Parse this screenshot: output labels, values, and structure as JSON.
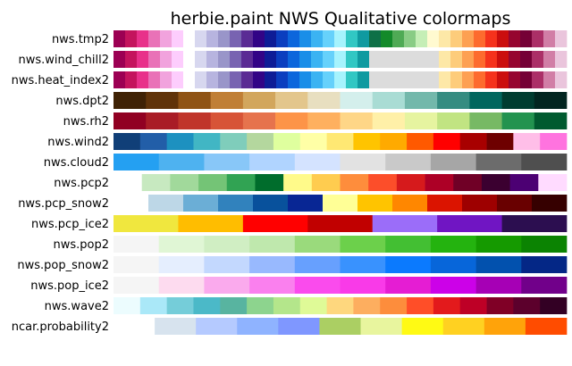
{
  "chart_data": {
    "type": "heatmap",
    "title": "herbie.paint NWS Qualitative colormaps",
    "xlabel": "",
    "ylabel": "",
    "grid": false,
    "legend": "none",
    "rows": [
      {
        "name": "nws.tmp2",
        "colors": [
          "#9c0053",
          "#c4145d",
          "#e8318a",
          "#e972b7",
          "#f1a3dd",
          "#fdcdfd",
          null,
          "#d7d7ef",
          "#b7b4df",
          "#9995c9",
          "#7863b1",
          "#5a2b94",
          "#320486",
          "#0e1c96",
          "#0b3ebf",
          "#0c66dc",
          "#1a8ee8",
          "#3bb3f2",
          "#66d1fb",
          "#a6f3fd",
          "#31c7c3",
          "#0f9aa0",
          "#0e7047",
          "#138a2a",
          "#4faa55",
          "#89cc85",
          "#c5eeb6",
          "#fffad0",
          "#fde8a7",
          "#fdcc7b",
          "#fda052",
          "#fd6b2e",
          "#f5321c",
          "#cb0e0e",
          "#96052f",
          "#750036",
          "#ab2f67",
          "#d17ea6",
          "#eac5dc"
        ]
      },
      {
        "name": "nws.wind_chill2",
        "colors": [
          "#9c0053",
          "#c4145d",
          "#e8318a",
          "#e972b7",
          "#f1a3dd",
          "#fdcdfd",
          null,
          "#d7d7ef",
          "#b7b4df",
          "#9995c9",
          "#7863b1",
          "#5a2b94",
          "#320486",
          "#0e1c96",
          "#0b3ebf",
          "#0c66dc",
          "#1a8ee8",
          "#3bb3f2",
          "#66d1fb",
          "#a6f3fd",
          "#31c7c3",
          "#0f9aa0",
          "#dcdcdc",
          "#dcdcdc",
          "#dcdcdc",
          "#dcdcdc",
          "#dcdcdc",
          "#dcdcdc",
          "#fde8a7",
          "#fdcc7b",
          "#fda052",
          "#fd6b2e",
          "#f5321c",
          "#cb0e0e",
          "#96052f",
          "#750036",
          "#ab2f67",
          "#d17ea6",
          "#eac5dc"
        ]
      },
      {
        "name": "nws.heat_index2",
        "colors": [
          "#9c0053",
          "#c4145d",
          "#e8318a",
          "#e972b7",
          "#f1a3dd",
          "#fdcdfd",
          null,
          "#d7d7ef",
          "#b7b4df",
          "#9995c9",
          "#7863b1",
          "#5a2b94",
          "#320486",
          "#0e1c96",
          "#0b3ebf",
          "#0c66dc",
          "#1a8ee8",
          "#3bb3f2",
          "#66d1fb",
          "#a6f3fd",
          "#31c7c3",
          "#0f9aa0",
          "#dcdcdc",
          "#dcdcdc",
          "#dcdcdc",
          "#dcdcdc",
          "#dcdcdc",
          "#dcdcdc",
          "#fde8a7",
          "#fdcc7b",
          "#fda052",
          "#fd6b2e",
          "#f5321c",
          "#cb0e0e",
          "#96052f",
          "#750036",
          "#ab2f67",
          "#d17ea6",
          "#eac5dc"
        ]
      },
      {
        "name": "nws.dpt2",
        "colors": [
          "#3f2205",
          "#603309",
          "#8f5314",
          "#c07f36",
          "#d2a65d",
          "#e3c68c",
          "#e8dfc0",
          "#d4efec",
          "#a9dcd4",
          "#73b8ab",
          "#358c81",
          "#01665e",
          "#003c30",
          "#022520"
        ]
      },
      {
        "name": "nws.rh2",
        "colors": [
          "#910022",
          "#a91c26",
          "#c0352a",
          "#d75437",
          "#e6734d",
          "#fd9448",
          "#feb05f",
          "#fed687",
          "#fff0a8",
          "#e6f4a0",
          "#c1e482",
          "#77b964",
          "#22934f",
          "#005a2f"
        ]
      },
      {
        "name": "nws.wind2",
        "colors": [
          "#103f78",
          "#225ea8",
          "#1d91c0",
          "#41b6c4",
          "#7fcdbb",
          "#b4d79e",
          "#dfff9e",
          "#ffffa6",
          "#ffe873",
          "#ffc400",
          "#ffaa00",
          "#ff5900",
          "#ff0000",
          "#a80000",
          "#6e0000",
          "#ffbee8",
          "#ff73df"
        ]
      },
      {
        "name": "nws.cloud2",
        "colors": [
          "#24a0f2",
          "#4eb2f0",
          "#88c7f8",
          "#b0d4ff",
          "#d4e3ff",
          "#e2e2e2",
          "#c9c9c9",
          "#a6a6a6",
          "#6c6c6c",
          "#4f4f4f"
        ]
      },
      {
        "name": "nws.pcp2",
        "colors": [
          null,
          "#c7e9c0",
          "#a1d99b",
          "#74c476",
          "#31a353",
          "#006d2c",
          "#fffa8a",
          "#ffcc4f",
          "#fe8d3c",
          "#fc4e2a",
          "#d61a1c",
          "#ad0026",
          "#700026",
          "#3b0030",
          "#4c0073",
          "#ffdbff"
        ]
      },
      {
        "name": "nws.pcp_snow2",
        "colors": [
          null,
          "#bdd7e7",
          "#6baed6",
          "#3182bd",
          "#08519c",
          "#082694",
          "#ffff96",
          "#ffc400",
          "#ff8700",
          "#db1400",
          "#9e0000",
          "#690000",
          "#360000"
        ]
      },
      {
        "name": "nws.pcp_ice2",
        "colors": [
          "#f0e73e",
          "#ffbd00",
          "#ff0000",
          "#c10000",
          "#9b6df9",
          "#7015c3",
          "#2c0e50"
        ]
      },
      {
        "name": "nws.pop2",
        "colors": [
          "#f5f5f5",
          "#e0f6d5",
          "#d0eec3",
          "#bfe8ad",
          "#9ada7c",
          "#6cd04b",
          "#43bf33",
          "#24b30f",
          "#159a00",
          "#0b8302"
        ]
      },
      {
        "name": "nws.pop_snow2",
        "colors": [
          "#f5f5f5",
          "#e5eefe",
          "#c3d8fe",
          "#98b9fe",
          "#67a0fe",
          "#3992fe",
          "#0b7afe",
          "#0766da",
          "#0251ae",
          "#042786"
        ]
      },
      {
        "name": "nws.pop_ice2",
        "colors": [
          "#f5f5f5",
          "#fddbef",
          "#faaaed",
          "#fa80ee",
          "#fa4bed",
          "#f93ae8",
          "#e51dd3",
          "#cc01e8",
          "#a600b5",
          "#71008a"
        ]
      },
      {
        "name": "nws.wave2",
        "colors": [
          "#ecfcfe",
          "#aae8f8",
          "#75cdd9",
          "#4bb9c8",
          "#58b4a0",
          "#8dd48e",
          "#b4e68b",
          "#dffa97",
          "#fed77e",
          "#fdae5f",
          "#fd8d3c",
          "#ff4e28",
          "#e31a1c",
          "#be0026",
          "#800026",
          "#5c002c",
          "#330024"
        ]
      },
      {
        "name": "ncar.probability2",
        "colors": [
          null,
          "#d7e3ee",
          "#b5caff",
          "#8fb3ff",
          "#7f97ff",
          "#abcf63",
          "#e8f59e",
          "#fffa14",
          "#ffd121",
          "#ffa30a",
          "#ff4c00"
        ]
      }
    ]
  }
}
